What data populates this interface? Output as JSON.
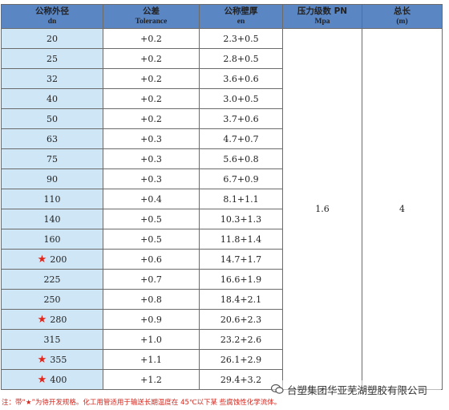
{
  "table": {
    "headers": [
      {
        "cn": "公称外径",
        "en": "dn"
      },
      {
        "cn": "公差",
        "en": "Tolerance"
      },
      {
        "cn": "公称壁厚",
        "en": "en"
      },
      {
        "cn": "压力级数 PN",
        "en": "Mpa"
      },
      {
        "cn": "总长",
        "en": "(m)"
      }
    ],
    "rows": [
      {
        "dn": "20",
        "star": false,
        "tol": "+0.2",
        "en": "2.3+0.5"
      },
      {
        "dn": "25",
        "star": false,
        "tol": "+0.2",
        "en": "2.8+0.5"
      },
      {
        "dn": "32",
        "star": false,
        "tol": "+0.2",
        "en": "3.6+0.6"
      },
      {
        "dn": "40",
        "star": false,
        "tol": "+0.2",
        "en": "3.0+0.5"
      },
      {
        "dn": "50",
        "star": false,
        "tol": "+0.2",
        "en": "3.7+0.6"
      },
      {
        "dn": "63",
        "star": false,
        "tol": "+0.3",
        "en": "4.7+0.7"
      },
      {
        "dn": "75",
        "star": false,
        "tol": "+0.3",
        "en": "5.6+0.8"
      },
      {
        "dn": "90",
        "star": false,
        "tol": "+0.3",
        "en": "6.7+0.9"
      },
      {
        "dn": "110",
        "star": false,
        "tol": "+0.4",
        "en": "8.1+1.1"
      },
      {
        "dn": "140",
        "star": false,
        "tol": "+0.5",
        "en": "10.3+1.3"
      },
      {
        "dn": "160",
        "star": false,
        "tol": "+0.5",
        "en": "11.8+1.4"
      },
      {
        "dn": "200",
        "star": true,
        "tol": "+0.6",
        "en": "14.7+1.7"
      },
      {
        "dn": "225",
        "star": false,
        "tol": "+0.7",
        "en": "16.6+1.9"
      },
      {
        "dn": "250",
        "star": false,
        "tol": "+0.8",
        "en": "18.4+2.1"
      },
      {
        "dn": "280",
        "star": true,
        "tol": "+0.9",
        "en": "20.6+2.3"
      },
      {
        "dn": "315",
        "star": false,
        "tol": "+1.0",
        "en": "23.2+2.6"
      },
      {
        "dn": "355",
        "star": true,
        "tol": "+1.1",
        "en": "26.1+2.9"
      },
      {
        "dn": "400",
        "star": true,
        "tol": "+1.2",
        "en": "29.4+3.2"
      }
    ],
    "pressure": "1.6",
    "length": "4",
    "star_glyph": "★"
  },
  "note": "注：带“★”为待开发规格。化工用管适用于输送长期温度在 45℃以下某 些腐蚀性化学流体。",
  "watermark": {
    "text": "台塑集团华亚芜湖塑胶有限公司",
    "icon": "wechat-logo-icon"
  },
  "colors": {
    "header_bg": "#5b86c4",
    "dn_cell_bg": "#cfe6f6",
    "star": "#e0261b",
    "note": "#d2261d"
  }
}
